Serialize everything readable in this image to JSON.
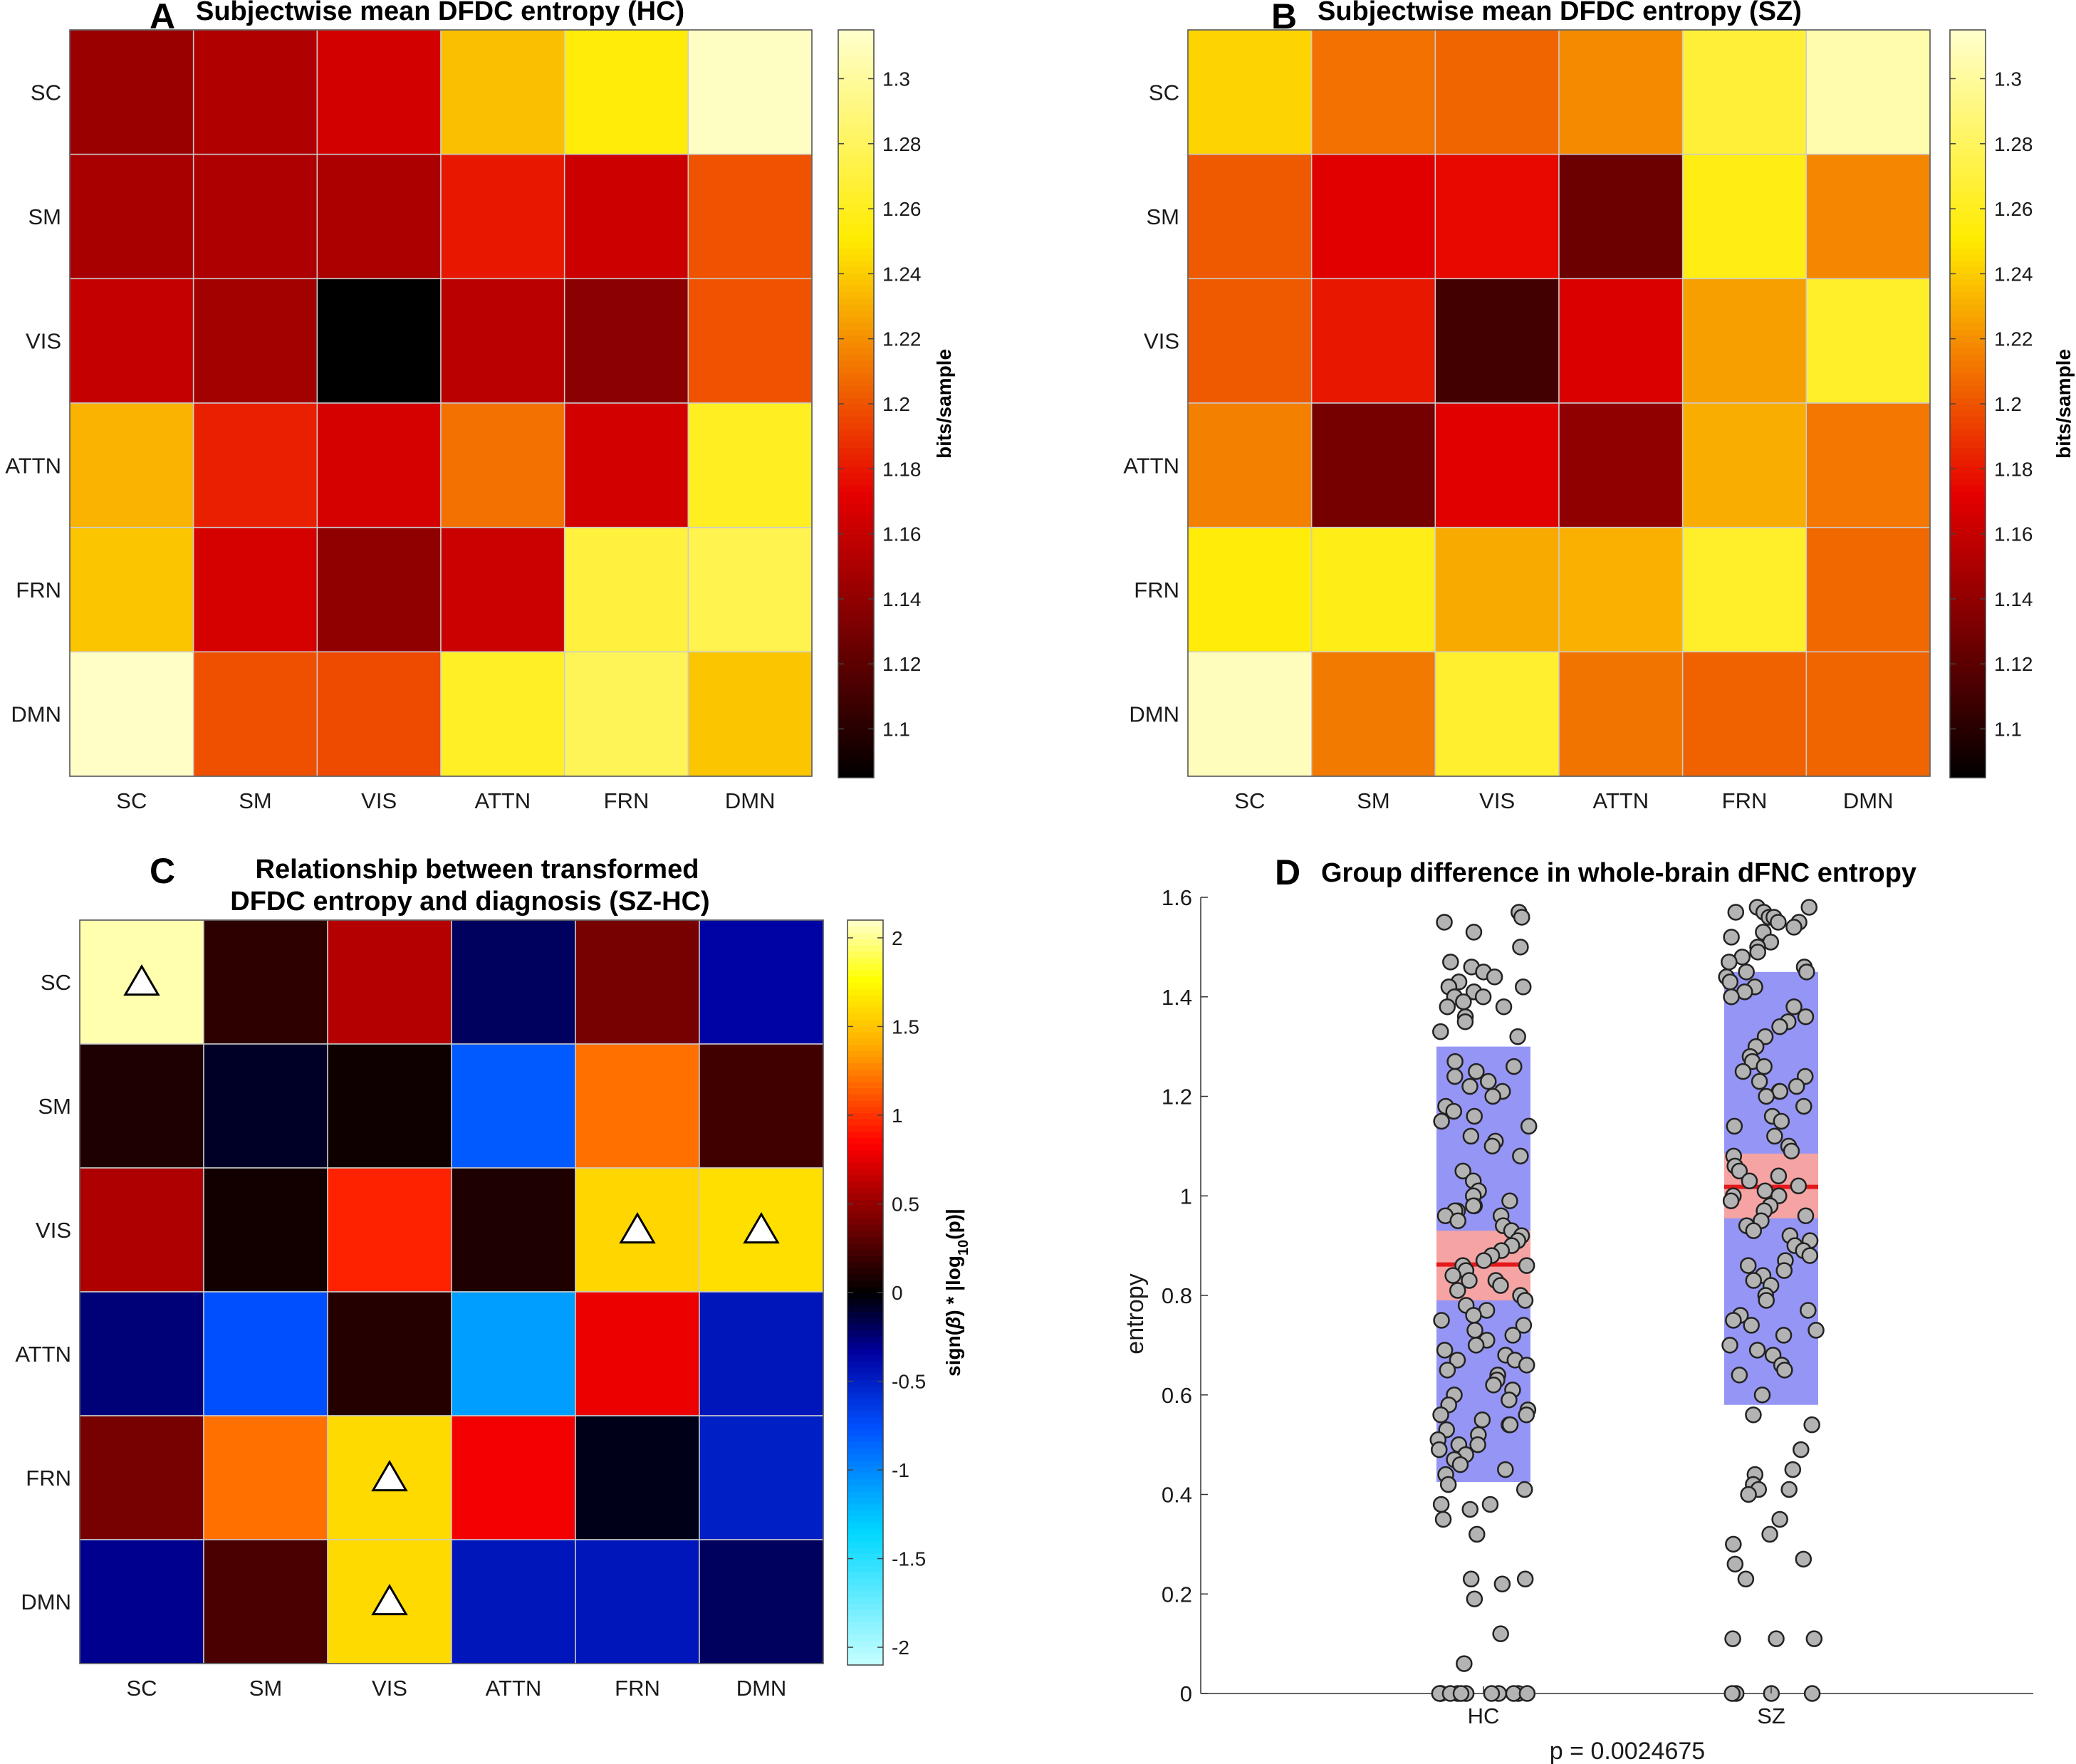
{
  "colors": {
    "hot_low": "#000000",
    "hot_high": "#ffffcc",
    "grid": "#cccccc",
    "iqr_box": "#8f8ff5",
    "ci_box": "#f5a3a3",
    "mean_line": "#e31a1c",
    "point_fill": "#b3b3b3",
    "point_edge": "#222222"
  },
  "icons": {
    "marker": "triangle-marker-icon"
  },
  "chart_data": [
    {
      "id": "A",
      "type": "heatmap",
      "letter": "A",
      "title": "Subjectwise mean DFDC entropy (HC)",
      "rows": [
        "SC",
        "SM",
        "VIS",
        "ATTN",
        "FRN",
        "DMN"
      ],
      "cols": [
        "SC",
        "SM",
        "VIS",
        "ATTN",
        "FRN",
        "DMN"
      ],
      "values": [
        [
          1.144,
          1.152,
          1.165,
          1.236,
          1.253,
          1.312
        ],
        [
          1.149,
          1.151,
          1.15,
          1.18,
          1.163,
          1.2
        ],
        [
          1.16,
          1.147,
          1.085,
          1.156,
          1.138,
          1.2
        ],
        [
          1.232,
          1.183,
          1.166,
          1.21,
          1.165,
          1.261
        ],
        [
          1.238,
          1.166,
          1.14,
          1.162,
          1.27,
          1.276
        ],
        [
          1.313,
          1.199,
          1.197,
          1.262,
          1.278,
          1.238
        ]
      ],
      "clim": [
        1.085,
        1.315
      ],
      "colorbar": {
        "ticks": [
          1.1,
          1.12,
          1.14,
          1.16,
          1.18,
          1.2,
          1.22,
          1.24,
          1.26,
          1.28,
          1.3
        ],
        "tick_labels": [
          "1.1",
          "1.12",
          "1.14",
          "1.16",
          "1.18",
          "1.2",
          "1.22",
          "1.24",
          "1.26",
          "1.28",
          "1.3"
        ],
        "label": "bits/sample"
      }
    },
    {
      "id": "B",
      "type": "heatmap",
      "letter": "B",
      "title": "Subjectwise mean DFDC entropy (SZ)",
      "rows": [
        "SC",
        "SM",
        "VIS",
        "ATTN",
        "FRN",
        "DMN"
      ],
      "cols": [
        "SC",
        "SM",
        "VIS",
        "ATTN",
        "FRN",
        "DMN"
      ],
      "values": [
        [
          1.243,
          1.21,
          1.206,
          1.218,
          1.268,
          1.305
        ],
        [
          1.202,
          1.17,
          1.175,
          1.126,
          1.257,
          1.217
        ],
        [
          1.202,
          1.18,
          1.11,
          1.168,
          1.225,
          1.264
        ],
        [
          1.215,
          1.13,
          1.17,
          1.14,
          1.23,
          1.212
        ],
        [
          1.253,
          1.258,
          1.229,
          1.231,
          1.264,
          1.207
        ],
        [
          1.31,
          1.213,
          1.265,
          1.211,
          1.205,
          1.206
        ]
      ],
      "clim": [
        1.085,
        1.315
      ],
      "colorbar": {
        "ticks": [
          1.1,
          1.12,
          1.14,
          1.16,
          1.18,
          1.2,
          1.22,
          1.24,
          1.26,
          1.28,
          1.3
        ],
        "tick_labels": [
          "1.1",
          "1.12",
          "1.14",
          "1.16",
          "1.18",
          "1.2",
          "1.22",
          "1.24",
          "1.26",
          "1.28",
          "1.3"
        ],
        "label": "bits/sample"
      }
    },
    {
      "id": "C",
      "type": "heatmap",
      "letter": "C",
      "title": [
        "Relationship between transformed",
        "DFDC entropy and diagnosis (SZ-HC)"
      ],
      "rows": [
        "SC",
        "SM",
        "VIS",
        "ATTN",
        "FRN",
        "DMN"
      ],
      "cols": [
        "SC",
        "SM",
        "VIS",
        "ATTN",
        "FRN",
        "DMN"
      ],
      "values": [
        [
          2.05,
          0.15,
          0.6,
          -0.2,
          0.4,
          -0.35
        ],
        [
          0.1,
          -0.08,
          0.05,
          -0.8,
          1.2,
          0.22
        ],
        [
          0.58,
          0.06,
          0.95,
          0.1,
          1.58,
          1.62
        ],
        [
          -0.25,
          -0.75,
          0.12,
          -1.1,
          0.78,
          -0.45
        ],
        [
          0.4,
          1.2,
          1.6,
          0.8,
          -0.05,
          -0.5
        ],
        [
          -0.3,
          0.25,
          1.6,
          -0.45,
          -0.45,
          -0.2
        ]
      ],
      "markers": [
        [
          0,
          0
        ],
        [
          2,
          4
        ],
        [
          2,
          5
        ],
        [
          4,
          2
        ],
        [
          5,
          2
        ]
      ],
      "clim": [
        -2.1,
        2.1
      ],
      "colorbar": {
        "ticks": [
          -2,
          -1.5,
          -1,
          -0.5,
          0,
          0.5,
          1,
          1.5,
          2
        ],
        "tick_labels": [
          "-2",
          "-1.5",
          "-1",
          "-0.5",
          "0",
          "0.5",
          "1",
          "1.5",
          "2"
        ],
        "label_prefix": "sign(",
        "label_beta": "β",
        "label_mid": ") * |log",
        "label_sub": "10",
        "label_suffix": "(p)|"
      }
    },
    {
      "id": "D",
      "type": "scatter",
      "letter": "D",
      "title": "Group difference in whole-brain dFNC entropy",
      "ylabel": "entropy",
      "xlabel": "p = 0.0024675",
      "ylim": [
        0,
        1.6
      ],
      "yticks": [
        0,
        0.2,
        0.4,
        0.6,
        0.8,
        1,
        1.2,
        1.4,
        1.6
      ],
      "ytick_labels": [
        "0",
        "0.2",
        "0.4",
        "0.6",
        "0.8",
        "1",
        "1.2",
        "1.4",
        "1.6"
      ],
      "categories": [
        "HC",
        "SZ"
      ],
      "groups": [
        {
          "name": "HC",
          "mean": 0.862,
          "ci": [
            0.79,
            0.93
          ],
          "sd_range": [
            0.425,
            1.3
          ],
          "points": [
            1.57,
            1.56,
            1.55,
            1.53,
            1.5,
            1.47,
            1.46,
            1.45,
            1.44,
            1.43,
            1.42,
            1.42,
            1.41,
            1.4,
            1.4,
            1.39,
            1.38,
            1.38,
            1.36,
            1.35,
            1.33,
            1.32,
            1.27,
            1.26,
            1.25,
            1.24,
            1.23,
            1.22,
            1.21,
            1.2,
            1.18,
            1.17,
            1.16,
            1.15,
            1.14,
            1.12,
            1.11,
            1.1,
            1.08,
            1.05,
            1.03,
            1.01,
            1.0,
            0.99,
            0.98,
            0.98,
            0.97,
            0.97,
            0.96,
            0.96,
            0.95,
            0.94,
            0.93,
            0.92,
            0.91,
            0.9,
            0.89,
            0.88,
            0.87,
            0.86,
            0.86,
            0.85,
            0.84,
            0.83,
            0.83,
            0.82,
            0.81,
            0.8,
            0.79,
            0.78,
            0.77,
            0.76,
            0.75,
            0.74,
            0.73,
            0.72,
            0.71,
            0.7,
            0.69,
            0.68,
            0.67,
            0.67,
            0.66,
            0.65,
            0.64,
            0.63,
            0.62,
            0.61,
            0.6,
            0.59,
            0.58,
            0.57,
            0.56,
            0.56,
            0.55,
            0.54,
            0.54,
            0.53,
            0.52,
            0.51,
            0.5,
            0.5,
            0.49,
            0.48,
            0.47,
            0.46,
            0.45,
            0.44,
            0.42,
            0.41,
            0.38,
            0.38,
            0.37,
            0.35,
            0.32,
            0.23,
            0.23,
            0.22,
            0.19,
            0.12,
            0.06,
            0,
            0,
            0,
            0,
            0,
            0,
            0,
            0,
            0,
            0,
            0,
            0
          ]
        },
        {
          "name": "SZ",
          "mean": 1.018,
          "ci": [
            0.955,
            1.085
          ],
          "sd_range": [
            0.58,
            1.45
          ],
          "points": [
            1.58,
            1.58,
            1.57,
            1.57,
            1.56,
            1.56,
            1.55,
            1.55,
            1.54,
            1.53,
            1.52,
            1.51,
            1.5,
            1.49,
            1.48,
            1.47,
            1.46,
            1.45,
            1.45,
            1.44,
            1.43,
            1.42,
            1.41,
            1.4,
            1.38,
            1.36,
            1.35,
            1.34,
            1.32,
            1.3,
            1.28,
            1.27,
            1.26,
            1.25,
            1.24,
            1.23,
            1.22,
            1.21,
            1.21,
            1.2,
            1.18,
            1.16,
            1.15,
            1.14,
            1.12,
            1.1,
            1.09,
            1.08,
            1.06,
            1.05,
            1.04,
            1.03,
            1.02,
            1.01,
            1.0,
            1.0,
            0.99,
            0.98,
            0.97,
            0.96,
            0.95,
            0.94,
            0.93,
            0.92,
            0.91,
            0.9,
            0.89,
            0.88,
            0.87,
            0.86,
            0.85,
            0.84,
            0.83,
            0.82,
            0.8,
            0.79,
            0.77,
            0.76,
            0.75,
            0.74,
            0.73,
            0.72,
            0.7,
            0.69,
            0.68,
            0.66,
            0.65,
            0.64,
            0.6,
            0.56,
            0.54,
            0.49,
            0.45,
            0.44,
            0.42,
            0.41,
            0.41,
            0.4,
            0.35,
            0.32,
            0.3,
            0.27,
            0.26,
            0.23,
            0.11,
            0.11,
            0.11,
            0,
            0,
            0,
            0
          ]
        }
      ]
    }
  ]
}
